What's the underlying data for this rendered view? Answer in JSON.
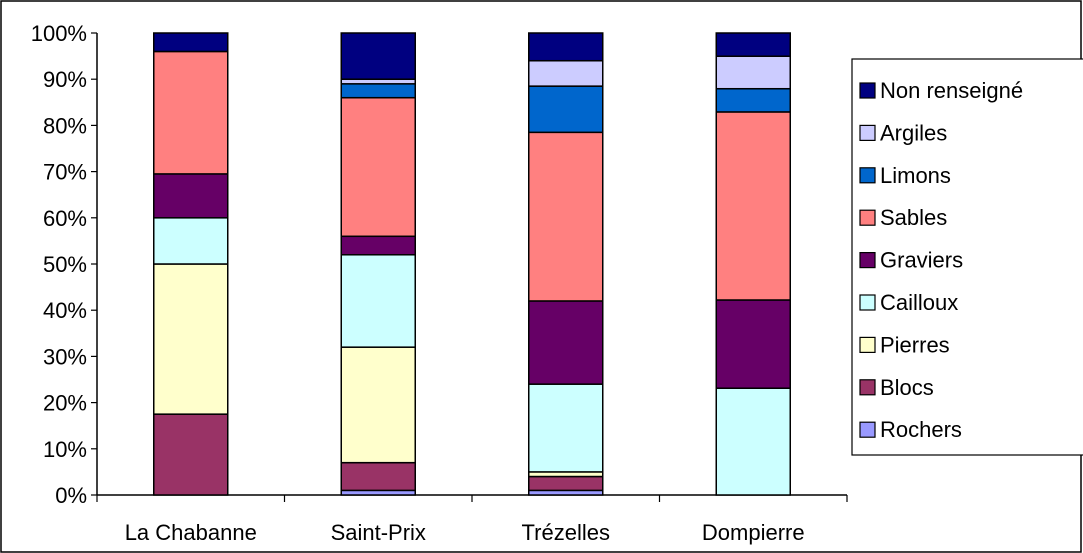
{
  "chart_data": {
    "type": "bar",
    "stacked": true,
    "percent": true,
    "categories": [
      "La Chabanne",
      "Saint-Prix",
      "Trézelles",
      "Dompierre"
    ],
    "ylim": [
      0,
      100
    ],
    "yticks": [
      "0%",
      "10%",
      "20%",
      "30%",
      "40%",
      "50%",
      "60%",
      "70%",
      "80%",
      "90%",
      "100%"
    ],
    "grid": false,
    "legend_position": "right",
    "series": [
      {
        "name": "Rochers",
        "color": "#9999ff",
        "values": [
          0,
          1,
          1,
          0
        ]
      },
      {
        "name": "Blocs",
        "color": "#993366",
        "values": [
          17.5,
          6,
          3,
          0
        ]
      },
      {
        "name": "Pierres",
        "color": "#ffffcc",
        "values": [
          32.5,
          25,
          1,
          0
        ]
      },
      {
        "name": "Cailloux",
        "color": "#ccffff",
        "values": [
          10,
          20,
          19,
          23
        ]
      },
      {
        "name": "Graviers",
        "color": "#660066",
        "values": [
          9.5,
          4,
          18,
          19
        ]
      },
      {
        "name": "Sables",
        "color": "#ff8080",
        "values": [
          26.5,
          30,
          36.5,
          40.5
        ]
      },
      {
        "name": "Limons",
        "color": "#0066cc",
        "values": [
          0,
          3,
          10,
          5
        ]
      },
      {
        "name": "Argiles",
        "color": "#ccccff",
        "values": [
          0,
          1,
          5.5,
          7
        ]
      },
      {
        "name": "Non renseigné",
        "color": "#000080",
        "values": [
          4,
          10,
          6,
          5
        ]
      }
    ]
  }
}
